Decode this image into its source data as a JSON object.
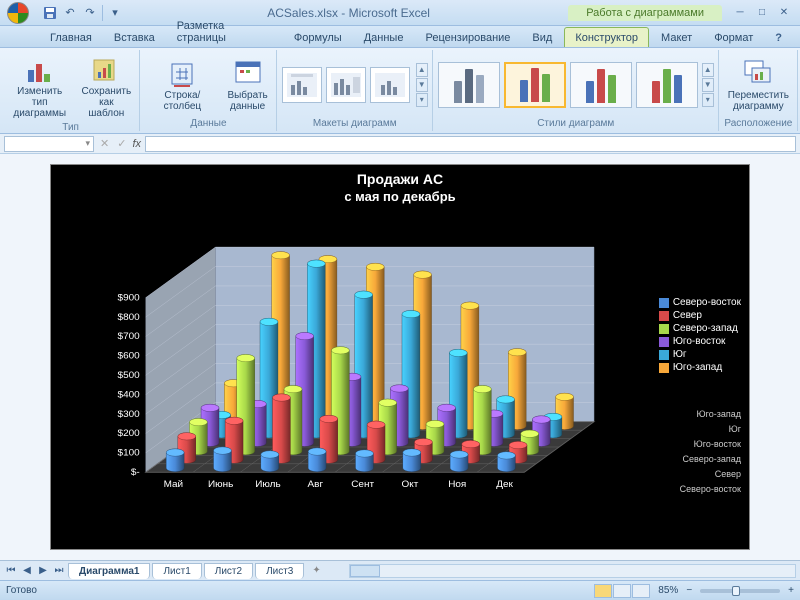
{
  "title_bar": {
    "filename": "ACSales.xlsx - Microsoft Excel",
    "contextual_title": "Работа с диаграммами"
  },
  "tabs": {
    "items": [
      "Главная",
      "Вставка",
      "Разметка страницы",
      "Формулы",
      "Данные",
      "Рецензирование",
      "Вид",
      "Конструктор",
      "Макет",
      "Формат"
    ],
    "active_index": 7
  },
  "ribbon": {
    "groups": {
      "type": {
        "label": "Тип",
        "change_type": "Изменить тип\nдиаграммы",
        "save_template": "Сохранить\nкак шаблон"
      },
      "data": {
        "label": "Данные",
        "switch": "Строка/столбец",
        "select": "Выбрать\nданные"
      },
      "layouts": {
        "label": "Макеты диаграмм"
      },
      "styles": {
        "label": "Стили диаграмм",
        "palette1": [
          "#7a8aa0",
          "#5a6a80",
          "#9aaac0"
        ],
        "palette2": [
          "#4a72b8",
          "#c84a4a",
          "#6aae4a"
        ],
        "palette3": [
          "#4a72b8",
          "#c84a4a",
          "#6aae4a"
        ],
        "palette4": [
          "#c84a4a",
          "#6aae4a",
          "#4a72b8"
        ]
      },
      "location": {
        "label": "Расположение",
        "move": "Переместить\nдиаграмму"
      }
    }
  },
  "formula": {
    "name_box": "",
    "fx_label": "fx"
  },
  "chart": {
    "title": "Продажи AC",
    "subtitle": "с мая по декабрь",
    "background": "#000000",
    "back_wall": "#a8b8d0",
    "side_wall": "#99a4b2",
    "floor": "#3a3a3a",
    "y_axis": {
      "ticks": [
        "$-",
        "$100",
        "$200",
        "$300",
        "$400",
        "$500",
        "$600",
        "$700",
        "$800",
        "$900"
      ],
      "color": "#ffffff"
    },
    "x_categories": [
      "Май",
      "Июнь",
      "Июль",
      "Авг",
      "Сент",
      "Окт",
      "Ноя",
      "Дек"
    ],
    "z_categories": [
      "Северо-восток",
      "Север",
      "Северо-запад",
      "Юго-восток",
      "Юг",
      "Юго-запад"
    ],
    "legend": [
      {
        "label": "Северо-восток",
        "color": "#4a8ad8"
      },
      {
        "label": "Север",
        "color": "#d84a4a"
      },
      {
        "label": "Северо-запад",
        "color": "#a8d84a"
      },
      {
        "label": "Юго-восток",
        "color": "#8a5ad8"
      },
      {
        "label": "Юг",
        "color": "#3aa8d8"
      },
      {
        "label": "Юго-запад",
        "color": "#f8a83a"
      }
    ],
    "series_colors": [
      "#4a8ad8",
      "#d84a4a",
      "#a8d84a",
      "#8a5ad8",
      "#3aa8d8",
      "#f8a83a"
    ],
    "data": [
      [
        80,
        90,
        70,
        85,
        75,
        80,
        70,
        65
      ],
      [
        120,
        200,
        320,
        210,
        180,
        90,
        80,
        75
      ],
      [
        150,
        480,
        320,
        520,
        250,
        140,
        320,
        90
      ],
      [
        180,
        200,
        550,
        340,
        280,
        180,
        150,
        120
      ],
      [
        100,
        580,
        880,
        720,
        620,
        420,
        180,
        90
      ],
      [
        220,
        880,
        860,
        820,
        780,
        620,
        380,
        150
      ]
    ]
  },
  "sheets": {
    "tabs": [
      "Диаграмма1",
      "Лист1",
      "Лист2",
      "Лист3"
    ],
    "active_index": 0
  },
  "status": {
    "ready": "Готово",
    "zoom": "85%"
  }
}
